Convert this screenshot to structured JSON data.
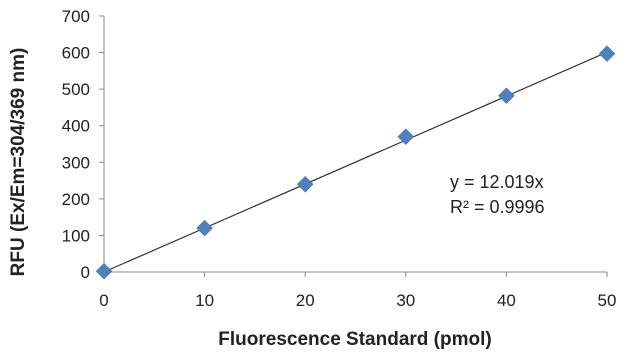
{
  "chart_data": {
    "type": "scatter",
    "xlabel": "Fluorescence Standard (pmol)",
    "ylabel": "RFU (Ex/Em=304/369 nm)",
    "xlim": [
      0,
      50
    ],
    "ylim": [
      0,
      700
    ],
    "xticks": [
      0,
      10,
      20,
      30,
      40,
      50
    ],
    "yticks": [
      0,
      100,
      200,
      300,
      400,
      500,
      600,
      700
    ],
    "grid": false,
    "marker_color": "#4f81bd",
    "line_color": "#333333",
    "series": [
      {
        "x": [
          0,
          10,
          20,
          30,
          40,
          50
        ],
        "y": [
          2,
          120,
          240,
          370,
          482,
          597
        ]
      }
    ],
    "trendline": {
      "slope": 12.019,
      "intercept": 0
    },
    "annotations": [
      "y = 12.019x",
      "R² = 0.9996"
    ]
  }
}
